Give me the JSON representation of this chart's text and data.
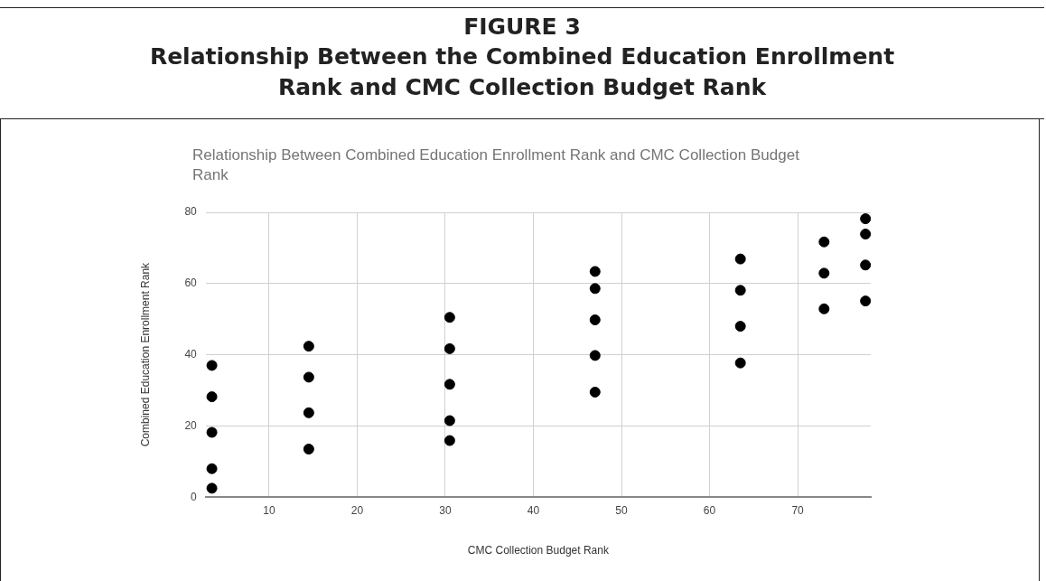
{
  "chart_data": {
    "type": "scatter",
    "title": "FIGURE 3",
    "subtitle": "Relationship Between the Combined Education Enrollment Rank and CMC Collection Budget Rank",
    "annotations": [
      "Relationship Between Combined Education Enrollment Rank and CMC Collection Budget Rank"
    ],
    "xlabel": "CMC Collection Budget Rank",
    "ylabel": "Combined Education Enrollment Rank",
    "x": [
      3.5,
      3.5,
      3.5,
      3.5,
      3.5,
      14.5,
      14.5,
      14.5,
      14.5,
      30.5,
      30.5,
      30.5,
      30.5,
      30.5,
      47,
      47,
      47,
      47,
      47,
      63.5,
      63.5,
      63.5,
      63.5,
      73,
      73,
      73,
      77.7,
      77.7,
      77.7,
      77.7
    ],
    "values": [
      37,
      28.2,
      18.2,
      8,
      2.5,
      42.4,
      33.7,
      23.7,
      13.5,
      50.5,
      41.7,
      31.7,
      21.5,
      15.9,
      63.4,
      58.6,
      49.8,
      39.8,
      29.5,
      66.9,
      58.1,
      48,
      37.7,
      71.7,
      62.9,
      52.9,
      78.2,
      73.9,
      65.2,
      55.1
    ],
    "color": "#000000",
    "marker": "circle",
    "xlim": [
      2.8,
      78.3
    ],
    "xticks": [
      10,
      20,
      30,
      40,
      50,
      60,
      70
    ],
    "ylim": [
      0,
      80
    ],
    "yticks": [
      0,
      20,
      40,
      60,
      80
    ],
    "grid": true
  }
}
